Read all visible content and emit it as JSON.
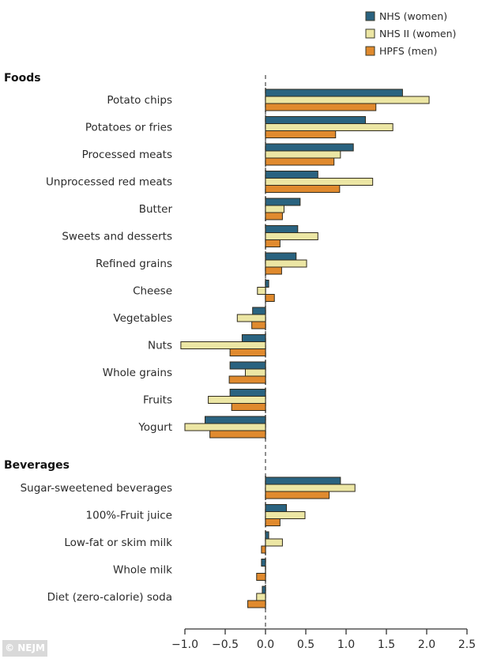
{
  "chart_data": {
    "type": "bar",
    "orientation": "horizontal",
    "title": "",
    "xlabel": "",
    "ylabel": "",
    "xlim": [
      -1.0,
      2.5
    ],
    "xticks": [
      -1.0,
      -0.5,
      0.0,
      0.5,
      1.0,
      1.5,
      2.0,
      2.5
    ],
    "xtick_labels": [
      "−1.0",
      "−0.5",
      "0.0",
      "0.5",
      "1.0",
      "1.5",
      "2.0",
      "2.5"
    ],
    "reference_line": 0.0,
    "grid": false,
    "legend_position": "top-right",
    "series": [
      {
        "name": "NHS (women)",
        "color": "#2a6380"
      },
      {
        "name": "NHS II (women)",
        "color": "#ece6a4"
      },
      {
        "name": "HPFS (men)",
        "color": "#e08a2e"
      }
    ],
    "groups": [
      {
        "name": "Foods",
        "categories": [
          {
            "label": "Potato chips",
            "values": [
              1.7,
              2.03,
              1.37
            ]
          },
          {
            "label": "Potatoes or fries",
            "values": [
              1.24,
              1.58,
              0.87
            ]
          },
          {
            "label": "Processed meats",
            "values": [
              1.09,
              0.93,
              0.85
            ]
          },
          {
            "label": "Unprocessed red meats",
            "values": [
              0.65,
              1.33,
              0.92
            ]
          },
          {
            "label": "Butter",
            "values": [
              0.43,
              0.23,
              0.21
            ]
          },
          {
            "label": "Sweets and desserts",
            "values": [
              0.4,
              0.65,
              0.18
            ]
          },
          {
            "label": "Refined grains",
            "values": [
              0.38,
              0.51,
              0.2
            ]
          },
          {
            "label": "Cheese",
            "values": [
              0.04,
              -0.1,
              0.11
            ]
          },
          {
            "label": "Vegetables",
            "values": [
              -0.16,
              -0.35,
              -0.17
            ]
          },
          {
            "label": "Nuts",
            "values": [
              -0.29,
              -1.05,
              -0.44
            ]
          },
          {
            "label": "Whole grains",
            "values": [
              -0.44,
              -0.25,
              -0.45
            ]
          },
          {
            "label": "Fruits",
            "values": [
              -0.44,
              -0.71,
              -0.42
            ]
          },
          {
            "label": "Yogurt",
            "values": [
              -0.75,
              -1.0,
              -0.69
            ]
          }
        ]
      },
      {
        "name": "Beverages",
        "categories": [
          {
            "label": "Sugar-sweetened beverages",
            "values": [
              0.93,
              1.11,
              0.79
            ]
          },
          {
            "label": "100%-Fruit juice",
            "values": [
              0.26,
              0.49,
              0.18
            ]
          },
          {
            "label": "Low-fat or skim milk",
            "values": [
              0.04,
              0.21,
              -0.05
            ]
          },
          {
            "label": "Whole milk",
            "values": [
              -0.05,
              0.0,
              -0.11
            ]
          },
          {
            "label": "Diet (zero-calorie) soda",
            "values": [
              -0.04,
              -0.11,
              -0.22
            ]
          }
        ]
      }
    ]
  },
  "credit": "© NEJM"
}
